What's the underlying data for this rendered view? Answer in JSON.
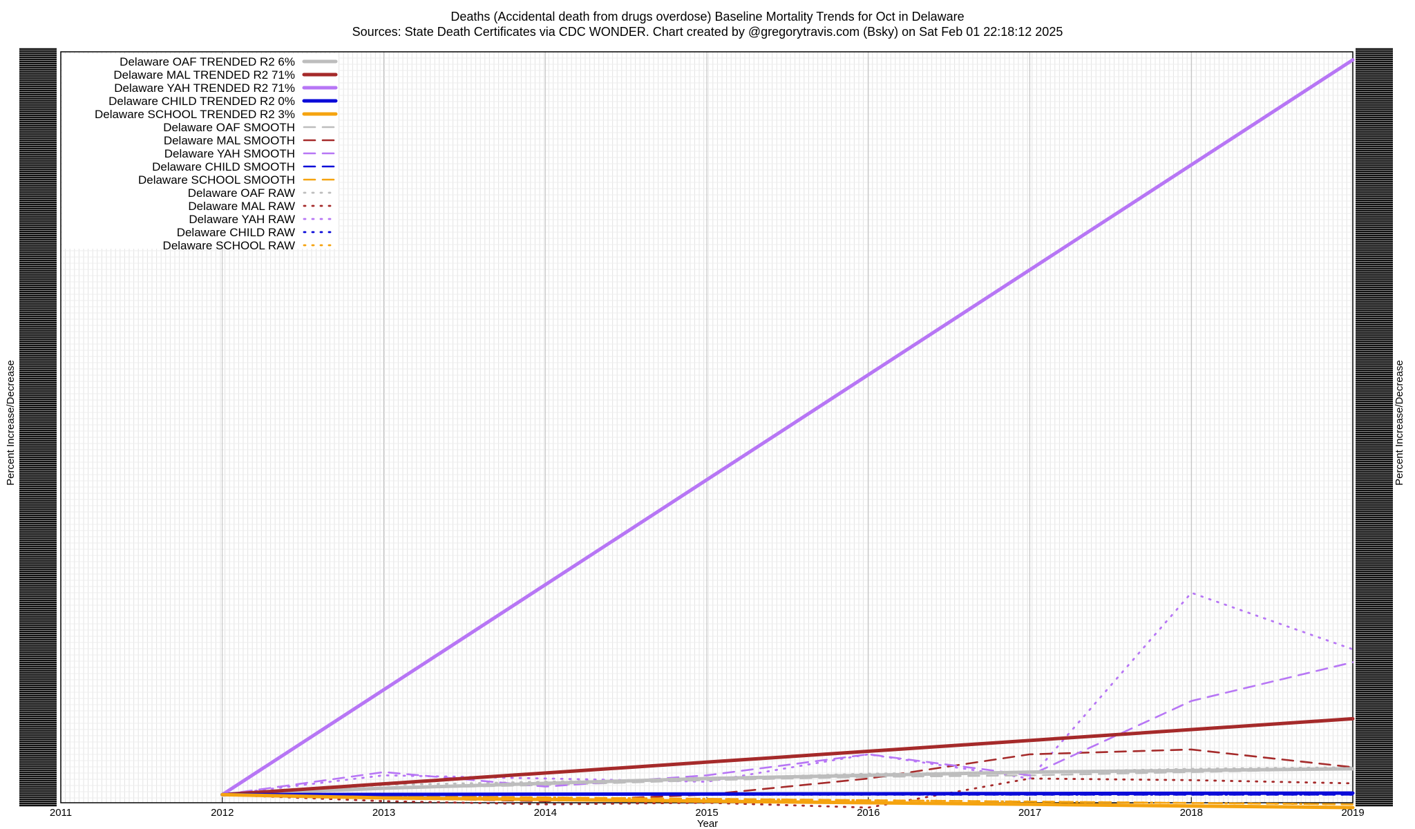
{
  "chart_data": {
    "type": "line",
    "title": "Deaths (Accidental death from drugs overdose)  Baseline Mortality Trends for Oct in Delaware",
    "subtitle": "Sources: State Death Certificates via CDC WONDER.                Chart created by @gregorytravis.com (Bsky) on Sat Feb 01 22:18:12 2025",
    "xlabel": "Year",
    "ylabel_left": "Percent Increase/Decrease",
    "ylabel_right": "Percent Increase/Decrease",
    "x_ticks": [
      "2011",
      "2012",
      "2013",
      "2014",
      "2015",
      "2016",
      "2017",
      "2018",
      "2019"
    ],
    "xlim": [
      2011,
      2019
    ],
    "ylim": [
      -5,
      460
    ],
    "grid": true,
    "legend_position": "top-left",
    "series": [
      {
        "name": "Delaware OAF TRENDED R2  6%",
        "color": "#bdbdbd",
        "style": "trended",
        "x": [
          2012,
          2013,
          2014,
          2015,
          2016,
          2017,
          2018,
          2019
        ],
        "y": [
          0,
          4,
          7,
          10,
          12,
          14,
          15,
          16
        ]
      },
      {
        "name": "Delaware MAL TRENDED R2  71%",
        "color": "#a52a2a",
        "style": "trended",
        "x": [
          2012,
          2019
        ],
        "y": [
          0,
          47
        ]
      },
      {
        "name": "Delaware YAH TRENDED R2  71%",
        "color": "#b776f5",
        "style": "trended",
        "x": [
          2012,
          2019
        ],
        "y": [
          0,
          455
        ]
      },
      {
        "name": "Delaware CHILD TRENDED R2  0%",
        "color": "#0a0ad8",
        "style": "trended",
        "x": [
          2012,
          2019
        ],
        "y": [
          0,
          1
        ]
      },
      {
        "name": "Delaware SCHOOL TRENDED R2  3%",
        "color": "#f5a30f",
        "style": "trended",
        "x": [
          2012,
          2013,
          2014,
          2015,
          2016,
          2017,
          2018,
          2019
        ],
        "y": [
          0,
          -2,
          -3,
          -4,
          -5,
          -6,
          -7,
          -8
        ]
      },
      {
        "name": "Delaware OAF SMOOTH",
        "color": "#bdbdbd",
        "style": "smooth",
        "x": [
          2012,
          2013,
          2014,
          2015,
          2016,
          2017,
          2018,
          2019
        ],
        "y": [
          0,
          4,
          6,
          9,
          11,
          12,
          14,
          16
        ]
      },
      {
        "name": "Delaware MAL SMOOTH",
        "color": "#a52a2a",
        "style": "smooth",
        "x": [
          2012,
          2013,
          2014,
          2015,
          2016,
          2017,
          2018,
          2019
        ],
        "y": [
          0,
          -2,
          -4,
          0,
          10,
          25,
          28,
          17
        ]
      },
      {
        "name": "Delaware YAH SMOOTH",
        "color": "#b776f5",
        "style": "smooth",
        "x": [
          2012,
          2013,
          2014,
          2015,
          2016,
          2017,
          2018,
          2019
        ],
        "y": [
          0,
          14,
          5,
          12,
          25,
          12,
          58,
          82
        ]
      },
      {
        "name": "Delaware CHILD SMOOTH",
        "color": "#0a0ad8",
        "style": "smooth",
        "x": [
          2012,
          2019
        ],
        "y": [
          0,
          0
        ]
      },
      {
        "name": "Delaware SCHOOL SMOOTH",
        "color": "#f5a30f",
        "style": "smooth",
        "x": [
          2012,
          2019
        ],
        "y": [
          0,
          -6
        ]
      },
      {
        "name": "Delaware OAF RAW",
        "color": "#bdbdbd",
        "style": "raw",
        "x": [
          2012,
          2013,
          2014,
          2015,
          2016,
          2017,
          2018,
          2019
        ],
        "y": [
          0,
          6,
          8,
          10,
          13,
          14,
          16,
          17
        ]
      },
      {
        "name": "Delaware MAL RAW",
        "color": "#a52a2a",
        "style": "raw",
        "x": [
          2012,
          2013,
          2014,
          2015,
          2016,
          2017,
          2018,
          2019
        ],
        "y": [
          0,
          -4,
          -6,
          -5,
          -8,
          10,
          9,
          7
        ]
      },
      {
        "name": "Delaware YAH RAW",
        "color": "#b776f5",
        "style": "raw",
        "x": [
          2012,
          2013,
          2014,
          2015,
          2016,
          2017,
          2018,
          2019
        ],
        "y": [
          0,
          12,
          10,
          8,
          25,
          10,
          125,
          90
        ]
      },
      {
        "name": "Delaware CHILD RAW",
        "color": "#0a0ad8",
        "style": "raw",
        "x": [
          2012,
          2019
        ],
        "y": [
          0,
          0
        ]
      },
      {
        "name": "Delaware SCHOOL RAW",
        "color": "#f5a30f",
        "style": "raw",
        "x": [
          2012,
          2019
        ],
        "y": [
          0,
          -6
        ]
      }
    ]
  }
}
